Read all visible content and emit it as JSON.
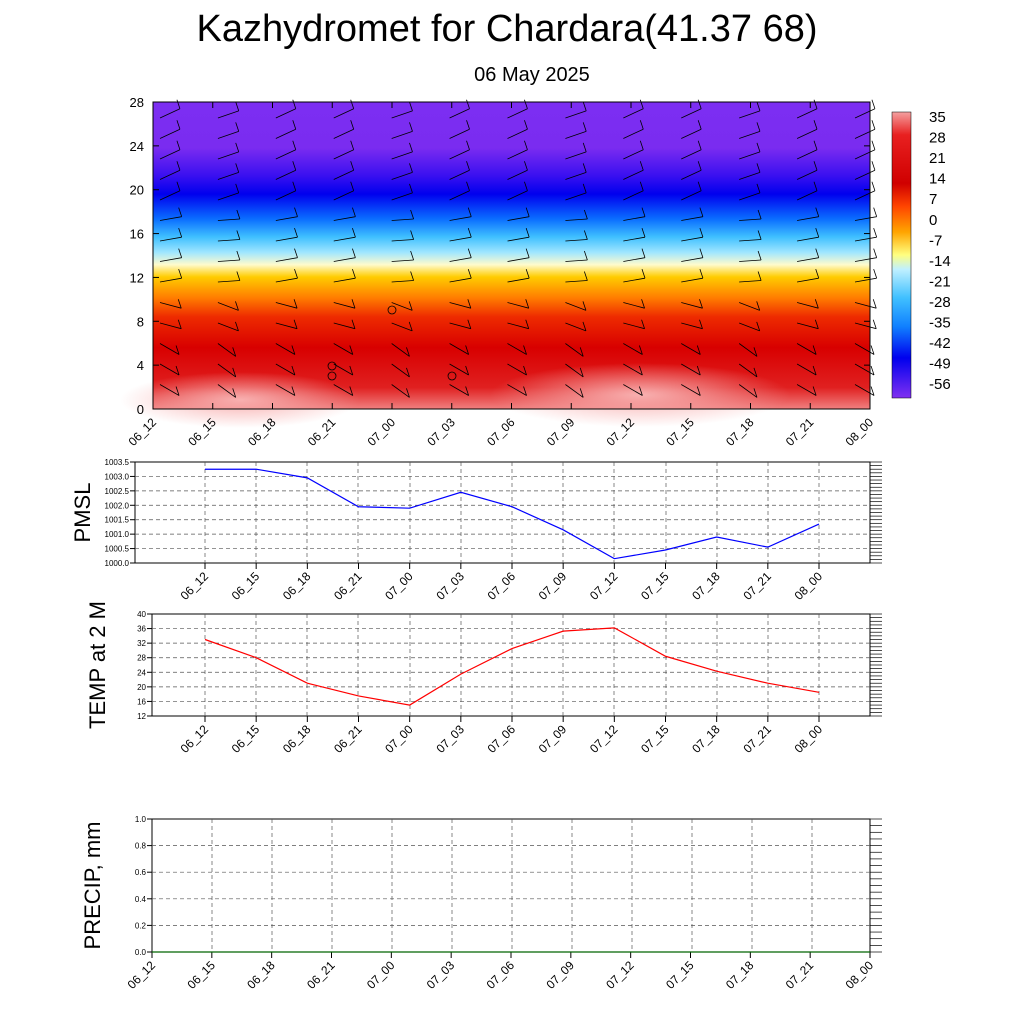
{
  "title": "Kazhydromet for Chardara(41.37 68)",
  "subtitle": "06 May 2025",
  "time_labels": [
    "06_12",
    "06_15",
    "06_18",
    "06_21",
    "07_00",
    "07_03",
    "07_06",
    "07_09",
    "07_12",
    "07_15",
    "07_18",
    "07_21",
    "08_00"
  ],
  "colors": {
    "pmsl_line": "#0000ff",
    "temp_line": "#ff0000",
    "precip_line": "#006400"
  },
  "chart_data": [
    {
      "type": "heatmap",
      "name": "cross_section",
      "x": [
        "06_12",
        "06_15",
        "06_18",
        "06_21",
        "07_00",
        "07_03",
        "07_06",
        "07_09",
        "07_12",
        "07_15",
        "07_18",
        "07_21",
        "08_00"
      ],
      "y_ticks": [
        "0",
        "4",
        "8",
        "12",
        "16",
        "20",
        "24",
        "28"
      ],
      "ylim": [
        0,
        28
      ],
      "colorbar": {
        "labels": [
          "35",
          "28",
          "21",
          "14",
          "7",
          "0",
          "-7",
          "-14",
          "-21",
          "-28",
          "-35",
          "-42",
          "-49",
          "-56"
        ]
      },
      "grid": false
    },
    {
      "type": "line",
      "name": "pmsl",
      "ylabel": "PMSL",
      "y_ticks": [
        "1000.0",
        "1000.5",
        "1001.0",
        "1001.5",
        "1002.0",
        "1002.5",
        "1003.0",
        "1003.5"
      ],
      "ylim": [
        1000.0,
        1003.5
      ],
      "x": [
        "06_12",
        "06_15",
        "06_18",
        "06_21",
        "07_00",
        "07_03",
        "07_06",
        "07_09",
        "07_12",
        "07_15",
        "07_18",
        "07_21",
        "08_00"
      ],
      "values": [
        1003.25,
        1003.25,
        1002.95,
        1001.95,
        1001.9,
        1002.45,
        1001.95,
        1001.15,
        1000.15,
        1000.45,
        1000.9,
        1000.55,
        1001.35
      ],
      "grid": true
    },
    {
      "type": "line",
      "name": "temp",
      "ylabel": "TEMP at 2 M",
      "y_ticks": [
        "12",
        "16",
        "20",
        "24",
        "28",
        "32",
        "36",
        "40"
      ],
      "ylim": [
        12,
        40
      ],
      "x": [
        "06_12",
        "06_15",
        "06_18",
        "06_21",
        "07_00",
        "07_03",
        "07_06",
        "07_09",
        "07_12",
        "07_15",
        "07_18",
        "07_21",
        "08_00"
      ],
      "values": [
        33,
        28,
        21,
        17.5,
        15,
        23.5,
        30.5,
        35.3,
        36.2,
        28.4,
        24.3,
        21,
        18.5
      ],
      "grid": true
    },
    {
      "type": "line",
      "name": "precip",
      "ylabel": "PRECIP, mm",
      "y_ticks": [
        "0.0",
        "0.2",
        "0.4",
        "0.6",
        "0.8",
        "1.0"
      ],
      "ylim": [
        0,
        1.0
      ],
      "x": [
        "06_12",
        "06_15",
        "06_18",
        "06_21",
        "07_00",
        "07_03",
        "07_06",
        "07_09",
        "07_12",
        "07_15",
        "07_18",
        "07_21",
        "08_00"
      ],
      "values": [
        0,
        0,
        0,
        0,
        0,
        0,
        0,
        0,
        0,
        0,
        0,
        0,
        0
      ],
      "grid": true
    }
  ]
}
